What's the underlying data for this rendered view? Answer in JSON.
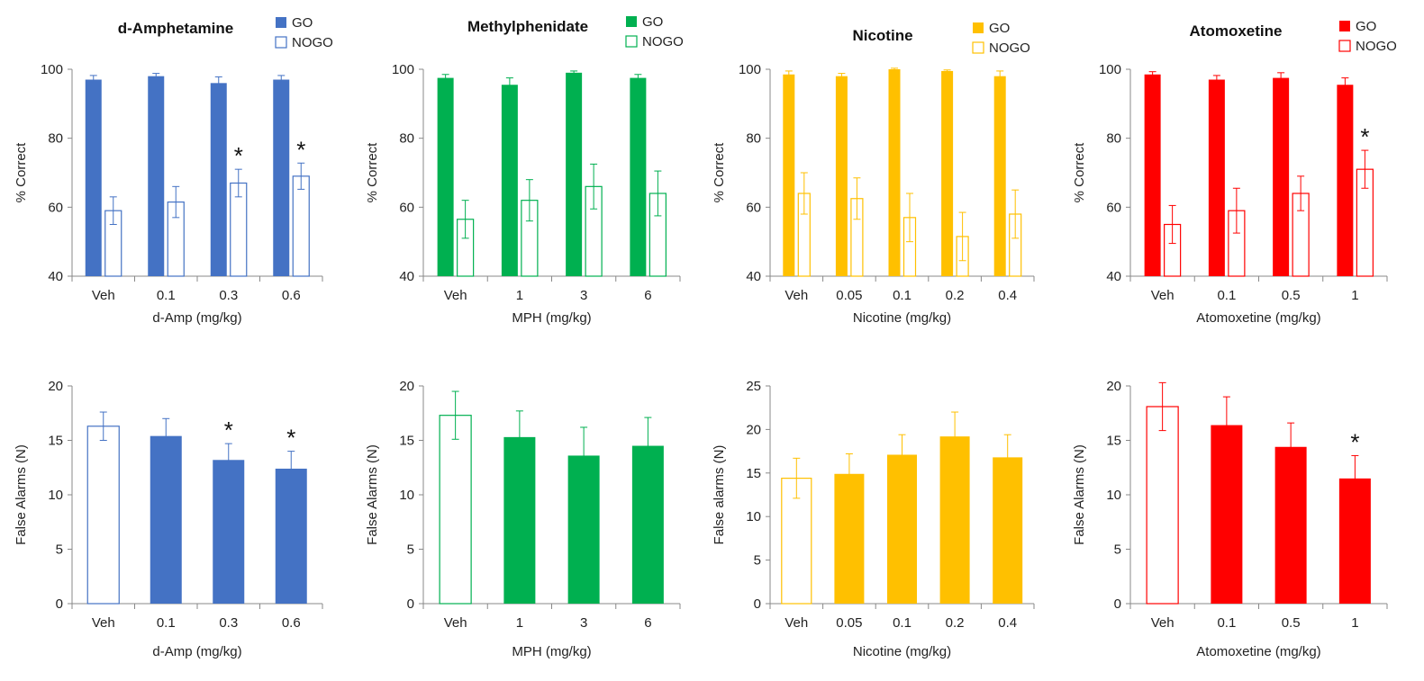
{
  "chart_data": [
    {
      "type": "bar",
      "title": "d-Amphetamine",
      "color": "#4472C4",
      "categories": [
        "Veh",
        "0.1",
        "0.3",
        "0.6"
      ],
      "xlabel": "d-Amp (mg/kg)",
      "ylabel": "% Correct",
      "ylim": [
        40,
        100
      ],
      "yticks": [
        40,
        60,
        80,
        100
      ],
      "legend": [
        "GO",
        "NOGO"
      ],
      "series": [
        {
          "name": "GO",
          "values": [
            97,
            98,
            96,
            97
          ],
          "errors": [
            1.2,
            0.8,
            1.8,
            1.2
          ],
          "filled": true
        },
        {
          "name": "NOGO",
          "values": [
            59,
            61.5,
            67,
            69
          ],
          "errors": [
            4,
            4.5,
            4,
            3.8
          ],
          "filled": false
        }
      ],
      "significant": [
        {
          "series": "NOGO",
          "category": "0.3"
        },
        {
          "series": "NOGO",
          "category": "0.6"
        }
      ],
      "annotation": "*"
    },
    {
      "type": "bar",
      "title": "Methylphenidate",
      "color": "#00B050",
      "categories": [
        "Veh",
        "1",
        "3",
        "6"
      ],
      "xlabel": "MPH (mg/kg)",
      "ylabel": "% Correct",
      "ylim": [
        40,
        100
      ],
      "yticks": [
        40,
        60,
        80,
        100
      ],
      "legend": [
        "GO",
        "NOGO"
      ],
      "series": [
        {
          "name": "GO",
          "values": [
            97.5,
            95.5,
            99,
            97.5
          ],
          "errors": [
            1,
            2,
            0.5,
            1
          ],
          "filled": true
        },
        {
          "name": "NOGO",
          "values": [
            56.5,
            62,
            66,
            64
          ],
          "errors": [
            5.5,
            6,
            6.5,
            6.5
          ],
          "filled": false
        }
      ],
      "significant": [],
      "annotation": ""
    },
    {
      "type": "bar",
      "title": "Nicotine",
      "color": "#FFC000",
      "categories": [
        "Veh",
        "0.05",
        "0.1",
        "0.2",
        "0.4"
      ],
      "xlabel": "Nicotine (mg/kg)",
      "ylabel": "% Correct",
      "ylim": [
        40,
        100
      ],
      "yticks": [
        40,
        60,
        80,
        100
      ],
      "legend": [
        "GO",
        "NOGO"
      ],
      "series": [
        {
          "name": "GO",
          "values": [
            98.5,
            98,
            100,
            99.5,
            98
          ],
          "errors": [
            1,
            0.8,
            0.3,
            0.3,
            1.5
          ],
          "filled": true
        },
        {
          "name": "NOGO",
          "values": [
            64,
            62.5,
            57,
            51.5,
            58
          ],
          "errors": [
            6,
            6,
            7,
            7,
            7
          ],
          "filled": false
        }
      ],
      "significant": [],
      "annotation": ""
    },
    {
      "type": "bar",
      "title": "Atomoxetine",
      "color": "#FF0000",
      "categories": [
        "Veh",
        "0.1",
        "0.5",
        "1"
      ],
      "xlabel": "Atomoxetine (mg/kg)",
      "ylabel": "% Correct",
      "ylim": [
        40,
        100
      ],
      "yticks": [
        40,
        60,
        80,
        100
      ],
      "legend": [
        "GO",
        "NOGO"
      ],
      "series": [
        {
          "name": "GO",
          "values": [
            98.5,
            97,
            97.5,
            95.5
          ],
          "errors": [
            0.8,
            1.2,
            1.5,
            2
          ],
          "filled": true
        },
        {
          "name": "NOGO",
          "values": [
            55,
            59,
            64,
            71
          ],
          "errors": [
            5.5,
            6.5,
            5,
            5.5
          ],
          "filled": false
        }
      ],
      "significant": [
        {
          "series": "NOGO",
          "category": "1"
        }
      ],
      "annotation": "*"
    },
    {
      "type": "bar",
      "title": "",
      "color": "#4472C4",
      "categories": [
        "Veh",
        "0.1",
        "0.3",
        "0.6"
      ],
      "xlabel": "d-Amp (mg/kg)",
      "ylabel": "False Alarms (N)",
      "ylim": [
        0,
        20
      ],
      "yticks": [
        0,
        5,
        10,
        15,
        20
      ],
      "series": [
        {
          "name": "False Alarms",
          "values": [
            16.3,
            15.4,
            13.2,
            12.4
          ],
          "errors": [
            1.3,
            1.6,
            1.5,
            1.6
          ],
          "filled": [
            false,
            true,
            true,
            true
          ]
        }
      ],
      "significant": [
        {
          "series": "False Alarms",
          "category": "0.3"
        },
        {
          "series": "False Alarms",
          "category": "0.6"
        }
      ],
      "annotation": "*"
    },
    {
      "type": "bar",
      "title": "",
      "color": "#00B050",
      "categories": [
        "Veh",
        "1",
        "3",
        "6"
      ],
      "xlabel": "MPH (mg/kg)",
      "ylabel": "False Alarms (N)",
      "ylim": [
        0,
        20
      ],
      "yticks": [
        0,
        5,
        10,
        15,
        20
      ],
      "series": [
        {
          "name": "False Alarms",
          "values": [
            17.3,
            15.3,
            13.6,
            14.5
          ],
          "errors": [
            2.2,
            2.4,
            2.6,
            2.6
          ],
          "filled": [
            false,
            true,
            true,
            true
          ]
        }
      ],
      "significant": [],
      "annotation": ""
    },
    {
      "type": "bar",
      "title": "",
      "color": "#FFC000",
      "categories": [
        "Veh",
        "0.05",
        "0.1",
        "0.2",
        "0.4"
      ],
      "xlabel": "Nicotine (mg/kg)",
      "ylabel": "False alarms (N)",
      "ylim": [
        0,
        25
      ],
      "yticks": [
        0,
        5,
        10,
        15,
        20,
        25
      ],
      "series": [
        {
          "name": "False Alarms",
          "values": [
            14.4,
            14.9,
            17.1,
            19.2,
            16.8
          ],
          "errors": [
            2.3,
            2.3,
            2.3,
            2.8,
            2.6
          ],
          "filled": [
            false,
            true,
            true,
            true,
            true
          ]
        }
      ],
      "significant": [],
      "annotation": ""
    },
    {
      "type": "bar",
      "title": "",
      "color": "#FF0000",
      "categories": [
        "Veh",
        "0.1",
        "0.5",
        "1"
      ],
      "xlabel": "Atomoxetine (mg/kg)",
      "ylabel": "False Alarms (N)",
      "ylim": [
        0,
        20
      ],
      "yticks": [
        0,
        5,
        10,
        15,
        20
      ],
      "series": [
        {
          "name": "False Alarms",
          "values": [
            18.1,
            16.4,
            14.4,
            11.5
          ],
          "errors": [
            2.2,
            2.6,
            2.2,
            2.1
          ],
          "filled": [
            false,
            true,
            true,
            true
          ]
        }
      ],
      "significant": [
        {
          "series": "False Alarms",
          "category": "1"
        }
      ],
      "annotation": "*"
    }
  ]
}
